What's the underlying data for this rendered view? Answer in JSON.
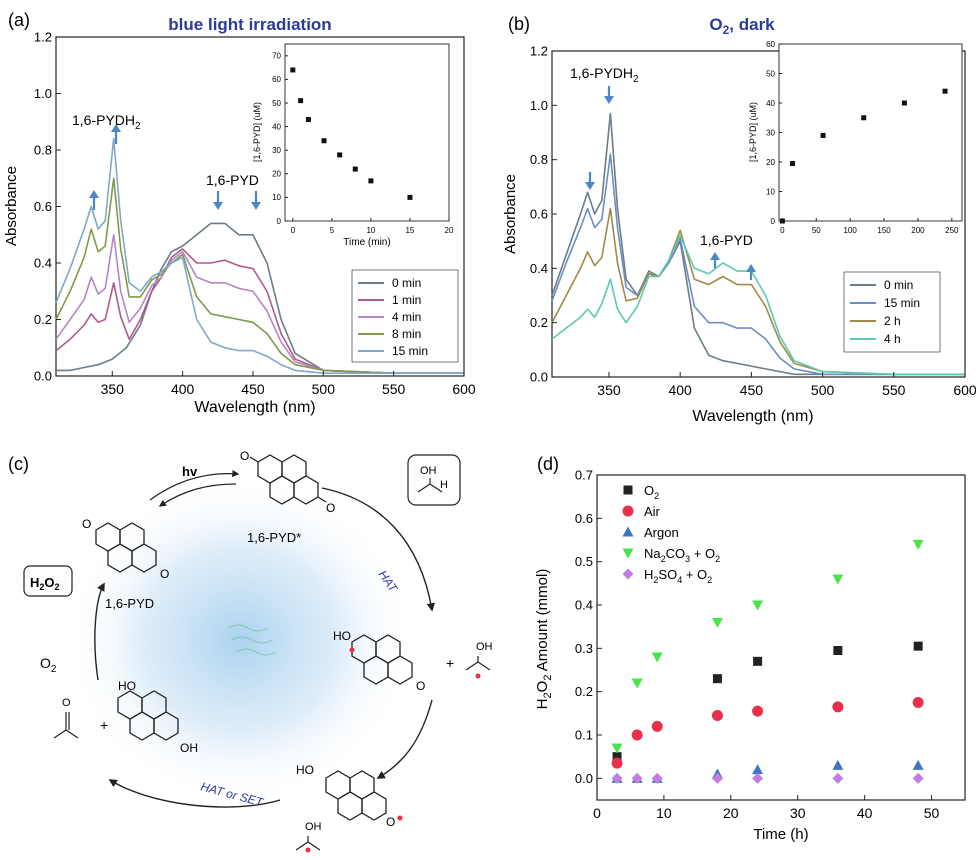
{
  "panels": {
    "a": {
      "label": "(a)",
      "title": "blue light irradiation",
      "peak_label_left": "1,6-PYDH",
      "peak_label_left_sub": "2",
      "peak_label_right": "1,6-PYD",
      "xlabel": "Wavelength (nm)",
      "ylabel": "Absorbance",
      "x_ticks": [
        "350",
        "400",
        "450",
        "500",
        "550",
        "600"
      ],
      "y_ticks": [
        "0.0",
        "0.2",
        "0.4",
        "0.6",
        "0.8",
        "1.0",
        "1.2"
      ],
      "legend": [
        "0 min",
        "1 min",
        "4 min",
        "8 min",
        "15 min"
      ],
      "inset": {
        "xlabel": "Time (min)",
        "ylabel": "[1,6-PYD] (uM)",
        "x_ticks": [
          "0",
          "5",
          "10",
          "15",
          "20"
        ],
        "y_ticks": [
          "0",
          "10",
          "20",
          "30",
          "40",
          "50",
          "60",
          "70"
        ]
      }
    },
    "b": {
      "label": "(b)",
      "title_main": "O",
      "title_sub": "2",
      "title_rest": ", dark",
      "peak_label_left": "1,6-PYDH",
      "peak_label_left_sub": "2",
      "peak_label_right": "1,6-PYD",
      "xlabel": "Wavelength (nm)",
      "ylabel": "Absorbance",
      "x_ticks": [
        "350",
        "400",
        "450",
        "500",
        "550",
        "600"
      ],
      "y_ticks": [
        "0.0",
        "0.2",
        "0.4",
        "0.6",
        "0.8",
        "1.0",
        "1.2"
      ],
      "legend": [
        "0 min",
        "15 min",
        "2 h",
        "4 h"
      ],
      "inset": {
        "ylabel": "[1,6-PYD] (uM)",
        "x_ticks": [
          "0",
          "50",
          "100",
          "150",
          "200",
          "250"
        ],
        "y_ticks": [
          "0",
          "10",
          "20",
          "30",
          "40",
          "50",
          "60"
        ]
      }
    },
    "c": {
      "label": "(c)",
      "hv": "hv",
      "pyd_star": "1,6-PYD*",
      "pyd": "1,6-PYD",
      "h2o2": "H",
      "o2": "O",
      "hat": "HAT",
      "hat_or_set": "HAT or SET",
      "oh": "OH",
      "ho": "HO",
      "h": "H",
      "plus": "+",
      "o": "O"
    },
    "d": {
      "label": "(d)",
      "xlabel": "Time (h)",
      "ylabel_main": "H",
      "ylabel_rest": "O",
      "ylabel_tail": " Amount (mmol)",
      "x_ticks": [
        "0",
        "10",
        "20",
        "30",
        "40",
        "50"
      ],
      "y_ticks": [
        "0.0",
        "0.1",
        "0.2",
        "0.3",
        "0.4",
        "0.5",
        "0.6",
        "0.7"
      ],
      "legend": [
        "O2",
        "Air",
        "Argon",
        "Na2CO3 + O2",
        "H2SO4 + O2"
      ]
    }
  },
  "colors": {
    "title_blue": "#2a3c9b",
    "arrow_blue": "#4a86c8",
    "a_series": [
      "#6b7d86",
      "#b05a8a",
      "#b586c9",
      "#7f9a4a",
      "#7fa8c9"
    ],
    "b_series": [
      "#6b7d86",
      "#6b8fc0",
      "#a08a4a",
      "#5cc9b0"
    ],
    "d_series": [
      "#222222",
      "#e8304a",
      "#3e78c2",
      "#49e44a",
      "#c07ee0"
    ]
  },
  "chart_data": [
    {
      "type": "line",
      "panel": "a",
      "xlabel": "Wavelength (nm)",
      "ylabel": "Absorbance",
      "xlim": [
        310,
        600
      ],
      "ylim": [
        0,
        1.2
      ],
      "series": [
        {
          "name": "0 min",
          "x": [
            310,
            320,
            330,
            340,
            350,
            360,
            370,
            378,
            385,
            392,
            400,
            410,
            420,
            430,
            440,
            450,
            460,
            470,
            480,
            500,
            550,
            600
          ],
          "y": [
            0.02,
            0.02,
            0.03,
            0.04,
            0.06,
            0.1,
            0.18,
            0.3,
            0.38,
            0.44,
            0.46,
            0.5,
            0.54,
            0.54,
            0.5,
            0.5,
            0.4,
            0.2,
            0.08,
            0.02,
            0.01,
            0.01
          ]
        },
        {
          "name": "1 min",
          "x": [
            310,
            320,
            330,
            335,
            340,
            345,
            351,
            356,
            362,
            370,
            378,
            385,
            392,
            400,
            410,
            420,
            430,
            440,
            450,
            460,
            470,
            480,
            500,
            550,
            600
          ],
          "y": [
            0.09,
            0.13,
            0.18,
            0.22,
            0.19,
            0.2,
            0.33,
            0.21,
            0.13,
            0.2,
            0.3,
            0.35,
            0.42,
            0.45,
            0.4,
            0.4,
            0.41,
            0.39,
            0.38,
            0.3,
            0.15,
            0.06,
            0.02,
            0.01,
            0.01
          ]
        },
        {
          "name": "4 min",
          "x": [
            310,
            320,
            330,
            335,
            340,
            345,
            351,
            356,
            362,
            370,
            378,
            385,
            392,
            400,
            410,
            420,
            430,
            440,
            450,
            460,
            470,
            480,
            500,
            550,
            600
          ],
          "y": [
            0.13,
            0.2,
            0.27,
            0.35,
            0.29,
            0.31,
            0.5,
            0.3,
            0.19,
            0.24,
            0.32,
            0.35,
            0.41,
            0.44,
            0.35,
            0.33,
            0.33,
            0.31,
            0.3,
            0.23,
            0.12,
            0.05,
            0.02,
            0.01,
            0.01
          ]
        },
        {
          "name": "8 min",
          "x": [
            310,
            320,
            330,
            335,
            340,
            345,
            351,
            356,
            362,
            370,
            378,
            385,
            392,
            400,
            410,
            420,
            430,
            440,
            450,
            460,
            470,
            480,
            500,
            550,
            600
          ],
          "y": [
            0.2,
            0.3,
            0.42,
            0.52,
            0.44,
            0.46,
            0.7,
            0.45,
            0.28,
            0.28,
            0.34,
            0.36,
            0.4,
            0.43,
            0.28,
            0.22,
            0.21,
            0.2,
            0.19,
            0.15,
            0.08,
            0.04,
            0.02,
            0.01,
            0.01
          ]
        },
        {
          "name": "15 min",
          "x": [
            310,
            320,
            330,
            335,
            340,
            345,
            351,
            356,
            362,
            370,
            378,
            385,
            392,
            400,
            410,
            420,
            430,
            440,
            450,
            460,
            470,
            480,
            500,
            550,
            600
          ],
          "y": [
            0.26,
            0.38,
            0.52,
            0.6,
            0.52,
            0.55,
            0.84,
            0.55,
            0.33,
            0.3,
            0.35,
            0.37,
            0.4,
            0.42,
            0.2,
            0.12,
            0.1,
            0.09,
            0.09,
            0.07,
            0.04,
            0.02,
            0.01,
            0.01,
            0.01
          ]
        }
      ],
      "inset": {
        "type": "scatter",
        "xlabel": "Time (min)",
        "ylabel": "[1,6-PYD] (uM)",
        "xlim": [
          -1,
          20
        ],
        "ylim": [
          0,
          75
        ],
        "x": [
          0,
          1,
          2,
          4,
          6,
          8,
          10,
          15
        ],
        "y": [
          64,
          51,
          43,
          34,
          28,
          22,
          17,
          10
        ]
      }
    },
    {
      "type": "line",
      "panel": "b",
      "xlabel": "Wavelength (nm)",
      "ylabel": "Absorbance",
      "xlim": [
        310,
        600
      ],
      "ylim": [
        0,
        1.2
      ],
      "series": [
        {
          "name": "0 min",
          "x": [
            310,
            320,
            330,
            335,
            340,
            345,
            351,
            356,
            362,
            370,
            378,
            385,
            392,
            400,
            410,
            420,
            430,
            440,
            450,
            460,
            470,
            480,
            500,
            550,
            600
          ],
          "y": [
            0.3,
            0.45,
            0.6,
            0.68,
            0.6,
            0.65,
            0.97,
            0.62,
            0.36,
            0.3,
            0.39,
            0.37,
            0.42,
            0.5,
            0.18,
            0.08,
            0.06,
            0.05,
            0.04,
            0.03,
            0.02,
            0.01,
            0.01,
            0.01,
            0.01
          ]
        },
        {
          "name": "15 min",
          "x": [
            310,
            320,
            330,
            335,
            340,
            345,
            351,
            356,
            362,
            370,
            378,
            385,
            392,
            400,
            410,
            420,
            430,
            440,
            450,
            460,
            470,
            480,
            500,
            550,
            600
          ],
          "y": [
            0.28,
            0.42,
            0.55,
            0.62,
            0.55,
            0.58,
            0.82,
            0.55,
            0.33,
            0.3,
            0.38,
            0.37,
            0.42,
            0.51,
            0.26,
            0.2,
            0.2,
            0.18,
            0.18,
            0.14,
            0.07,
            0.03,
            0.01,
            0.01,
            0.01
          ]
        },
        {
          "name": "2 h",
          "x": [
            310,
            320,
            330,
            335,
            340,
            345,
            351,
            356,
            362,
            370,
            378,
            385,
            392,
            400,
            410,
            420,
            430,
            440,
            450,
            460,
            470,
            480,
            500,
            550,
            600
          ],
          "y": [
            0.2,
            0.3,
            0.4,
            0.46,
            0.41,
            0.44,
            0.62,
            0.42,
            0.28,
            0.29,
            0.38,
            0.37,
            0.43,
            0.54,
            0.36,
            0.34,
            0.37,
            0.34,
            0.34,
            0.26,
            0.13,
            0.05,
            0.02,
            0.01,
            0.01
          ]
        },
        {
          "name": "4 h",
          "x": [
            310,
            320,
            330,
            335,
            340,
            345,
            351,
            356,
            362,
            370,
            378,
            385,
            392,
            400,
            410,
            420,
            430,
            440,
            450,
            460,
            470,
            480,
            500,
            550,
            600
          ],
          "y": [
            0.14,
            0.18,
            0.22,
            0.25,
            0.22,
            0.27,
            0.36,
            0.25,
            0.2,
            0.26,
            0.37,
            0.37,
            0.43,
            0.52,
            0.4,
            0.38,
            0.42,
            0.39,
            0.39,
            0.3,
            0.15,
            0.06,
            0.02,
            0.01,
            0.01
          ]
        }
      ],
      "inset": {
        "type": "scatter",
        "ylabel": "[1,6-PYD] (uM)",
        "xlim": [
          -5,
          265
        ],
        "ylim": [
          0,
          60
        ],
        "x": [
          0,
          15,
          60,
          120,
          180,
          240
        ],
        "y": [
          0,
          19.5,
          29,
          35,
          40,
          44
        ]
      }
    },
    {
      "type": "scatter",
      "panel": "d",
      "xlabel": "Time (h)",
      "ylabel": "H2O2 Amount (mmol)",
      "xlim": [
        0,
        55
      ],
      "ylim": [
        -0.05,
        0.7
      ],
      "series": [
        {
          "name": "O2",
          "marker": "square",
          "x": [
            3,
            18,
            24,
            36,
            48
          ],
          "y": [
            0.05,
            0.23,
            0.27,
            0.295,
            0.305
          ]
        },
        {
          "name": "Air",
          "marker": "circle",
          "x": [
            3,
            6,
            9,
            18,
            24,
            36,
            48
          ],
          "y": [
            0.035,
            0.1,
            0.12,
            0.145,
            0.155,
            0.165,
            0.175
          ]
        },
        {
          "name": "Argon",
          "marker": "triangle-up",
          "x": [
            3,
            6,
            9,
            18,
            24,
            36,
            48
          ],
          "y": [
            0.0,
            0.0,
            0.0,
            0.01,
            0.02,
            0.03,
            0.03
          ]
        },
        {
          "name": "Na2CO3 + O2",
          "marker": "triangle-down",
          "x": [
            3,
            6,
            9,
            18,
            24,
            36,
            48
          ],
          "y": [
            0.07,
            0.22,
            0.28,
            0.36,
            0.4,
            0.46,
            0.54
          ]
        },
        {
          "name": "H2SO4 + O2",
          "marker": "diamond",
          "x": [
            3,
            6,
            9,
            18,
            24,
            36,
            48
          ],
          "y": [
            0.0,
            0.0,
            0.0,
            0.0,
            0.0,
            0.0,
            0.0
          ]
        }
      ]
    }
  ]
}
